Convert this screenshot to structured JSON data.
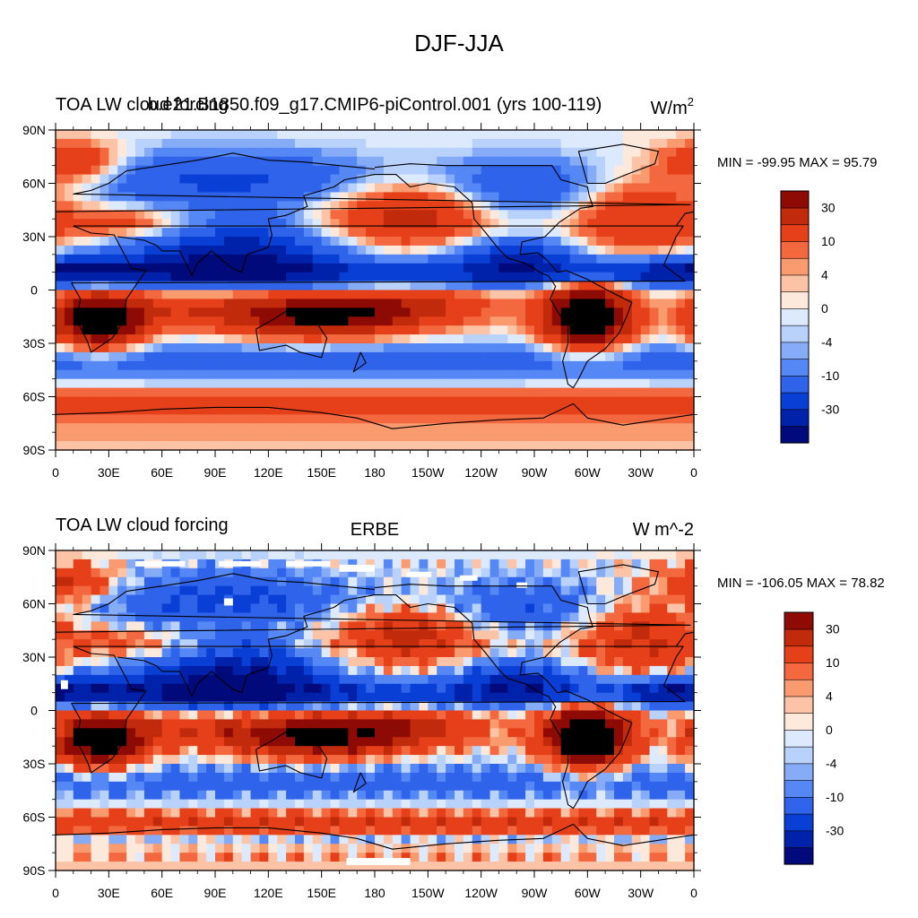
{
  "page_title": "DJF-JJA",
  "colors": {
    "levels": [
      "#000a7a",
      "#0022aa",
      "#0a3fd6",
      "#2f63ea",
      "#5587f5",
      "#86acf8",
      "#b9d2fb",
      "#dde9fd",
      "#fde8dc",
      "#fcc3a6",
      "#f99a6f",
      "#f3683e",
      "#e5401a",
      "#c22a0c",
      "#8e0a05"
    ],
    "land_outline": "#000000",
    "missing": "#ffffff"
  },
  "colorbar": {
    "labels": [
      "30",
      "10",
      "4",
      "0",
      "-4",
      "-10",
      "-30"
    ]
  },
  "chart_data": [
    {
      "type": "heatmap",
      "title_left": "TOA LW cloud forcing",
      "title_center": "b.e21.B1850.f09_g17.CMIP6-piControl.001 (yrs 100-119)",
      "units": "W/m",
      "units_sup": "2",
      "stats": "MIN = -99.95 MAX =  95.79",
      "xticks": [
        "0",
        "30E",
        "60E",
        "90E",
        "120E",
        "150E",
        "180",
        "150W",
        "120W",
        "90W",
        "60W",
        "30W",
        "0"
      ],
      "yticks": [
        "90N",
        "60N",
        "30N",
        "0",
        "30S",
        "60S",
        "90S"
      ],
      "xlim": [
        0,
        360
      ],
      "ylim": [
        -90,
        90
      ],
      "levels": [
        -40,
        -30,
        -20,
        -10,
        -6,
        -4,
        -2,
        0,
        2,
        4,
        6,
        10,
        20,
        30,
        40
      ]
    },
    {
      "type": "heatmap",
      "title_left": "TOA LW cloud forcing",
      "title_center": "ERBE",
      "units": "W m^-2",
      "units_sup": "",
      "stats": "MIN = -106.05 MAX =  78.82",
      "xticks": [
        "0",
        "30E",
        "60E",
        "90E",
        "120E",
        "150E",
        "180",
        "150W",
        "120W",
        "90W",
        "60W",
        "30W",
        "0"
      ],
      "yticks": [
        "90N",
        "60N",
        "30N",
        "0",
        "30S",
        "60S",
        "90S"
      ],
      "xlim": [
        0,
        360
      ],
      "ylim": [
        -90,
        90
      ],
      "levels": [
        -40,
        -30,
        -20,
        -10,
        -6,
        -4,
        -2,
        0,
        2,
        4,
        6,
        10,
        20,
        30,
        40
      ]
    }
  ]
}
